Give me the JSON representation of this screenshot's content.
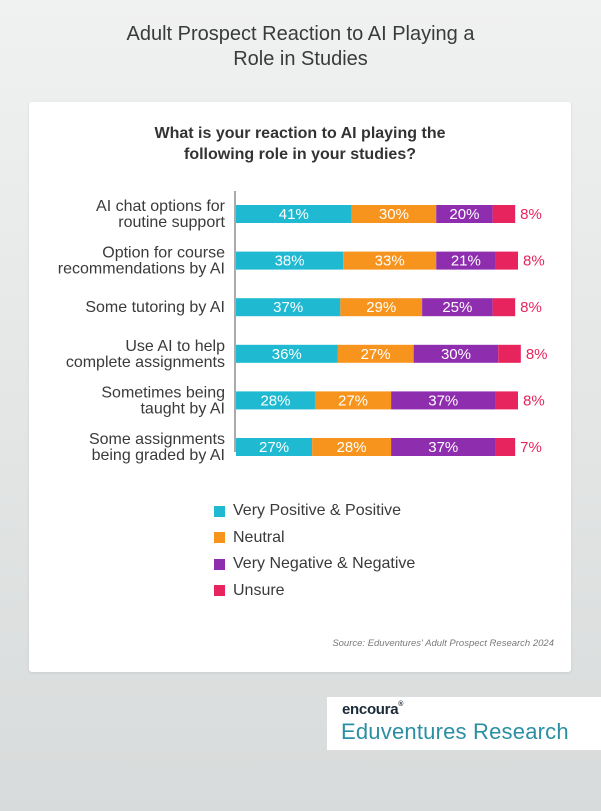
{
  "page": {
    "title_line1": "Adult Prospect Reaction to AI Playing a",
    "title_line2": "Role in Studies"
  },
  "chart_data": {
    "type": "bar",
    "orientation": "horizontal",
    "stacked": true,
    "title_line1": "What is your reaction to AI playing the",
    "title_line2": "following role in your studies?",
    "categories": [
      [
        "AI chat options for",
        "routine support"
      ],
      [
        "Option for course",
        "recommendations by AI"
      ],
      [
        "Some tutoring by AI"
      ],
      [
        "Use AI to help",
        "complete assignments"
      ],
      [
        "Sometimes being",
        "taught by AI"
      ],
      [
        "Some assignments",
        "being graded by AI"
      ]
    ],
    "series": [
      {
        "name": "Very Positive & Positive",
        "color": "#1fbad1",
        "values": [
          41,
          38,
          37,
          36,
          28,
          27
        ]
      },
      {
        "name": "Neutral",
        "color": "#f7941d",
        "values": [
          30,
          33,
          29,
          27,
          27,
          28
        ]
      },
      {
        "name": "Very Negative & Negative",
        "color": "#8e2eaf",
        "values": [
          20,
          21,
          25,
          30,
          37,
          37
        ]
      },
      {
        "name": "Unsure",
        "color": "#e8245e",
        "values": [
          8,
          8,
          8,
          8,
          8,
          7
        ]
      }
    ],
    "unit": "%",
    "legend_position": "bottom",
    "grid": false
  },
  "source": "Source: Eduventures' Adult Prospect Research 2024",
  "brand": {
    "line1": "encoura",
    "line2": "Eduventures Research",
    "reg_mark": "®"
  }
}
